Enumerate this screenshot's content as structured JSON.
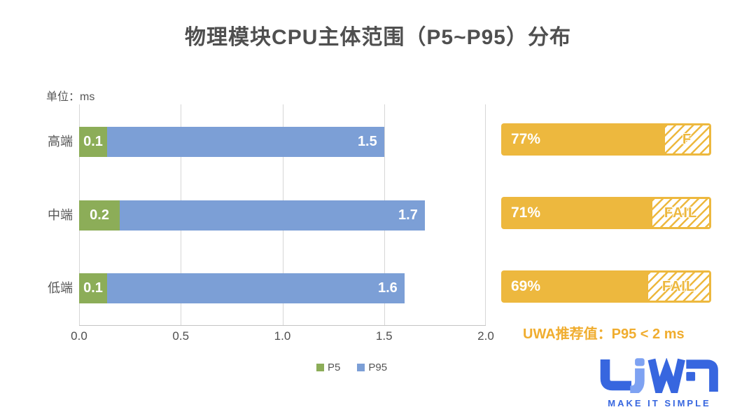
{
  "title": "物理模块CPU主体范围（P5~P95）分布",
  "unit_label": "单位：ms",
  "chart_data": [
    {
      "type": "bar",
      "orientation": "horizontal",
      "title": "物理模块CPU主体范围（P5~P95）分布",
      "unit": "ms",
      "categories": [
        "高端",
        "中端",
        "低端"
      ],
      "series": [
        {
          "name": "P5",
          "color": "#8CAD58",
          "values": [
            0.1,
            0.2,
            0.1
          ]
        },
        {
          "name": "P95",
          "color": "#7C9FD6",
          "values": [
            1.5,
            1.7,
            1.6
          ]
        }
      ],
      "xlim": [
        0.0,
        2.0
      ],
      "x_ticks": [
        "0.0",
        "0.5",
        "1.0",
        "1.5",
        "2.0"
      ],
      "grid": "vertical",
      "legend_position": "bottom-center"
    },
    {
      "type": "bar",
      "orientation": "horizontal",
      "name": "pass-rate-panel",
      "categories": [
        "高端",
        "中端",
        "低端"
      ],
      "values": [
        77,
        71,
        69
      ],
      "value_labels": [
        "77%",
        "71%",
        "69%"
      ],
      "fail_labels": [
        "F",
        "FAIL",
        "FAIL"
      ],
      "xlim": [
        0,
        100
      ],
      "bar_color": "#EDB83E"
    }
  ],
  "recommendation": {
    "text": "UWA推荐值：P95 < 2 ms"
  },
  "logo": {
    "brand": "UWA",
    "tagline": "MAKE IT SIMPLE"
  },
  "colors": {
    "p5_green": "#8CAD58",
    "p95_blue": "#7C9FD6",
    "pass_yellow": "#EDB83E",
    "recommendation_gold": "#F0AD2F",
    "logo_blue": "#3766DF",
    "logo_light_blue": "#7EA2F2",
    "title_gray": "#4F4F4F",
    "axis_text_gray": "#565656",
    "grid_gray": "#D6D6D6"
  }
}
